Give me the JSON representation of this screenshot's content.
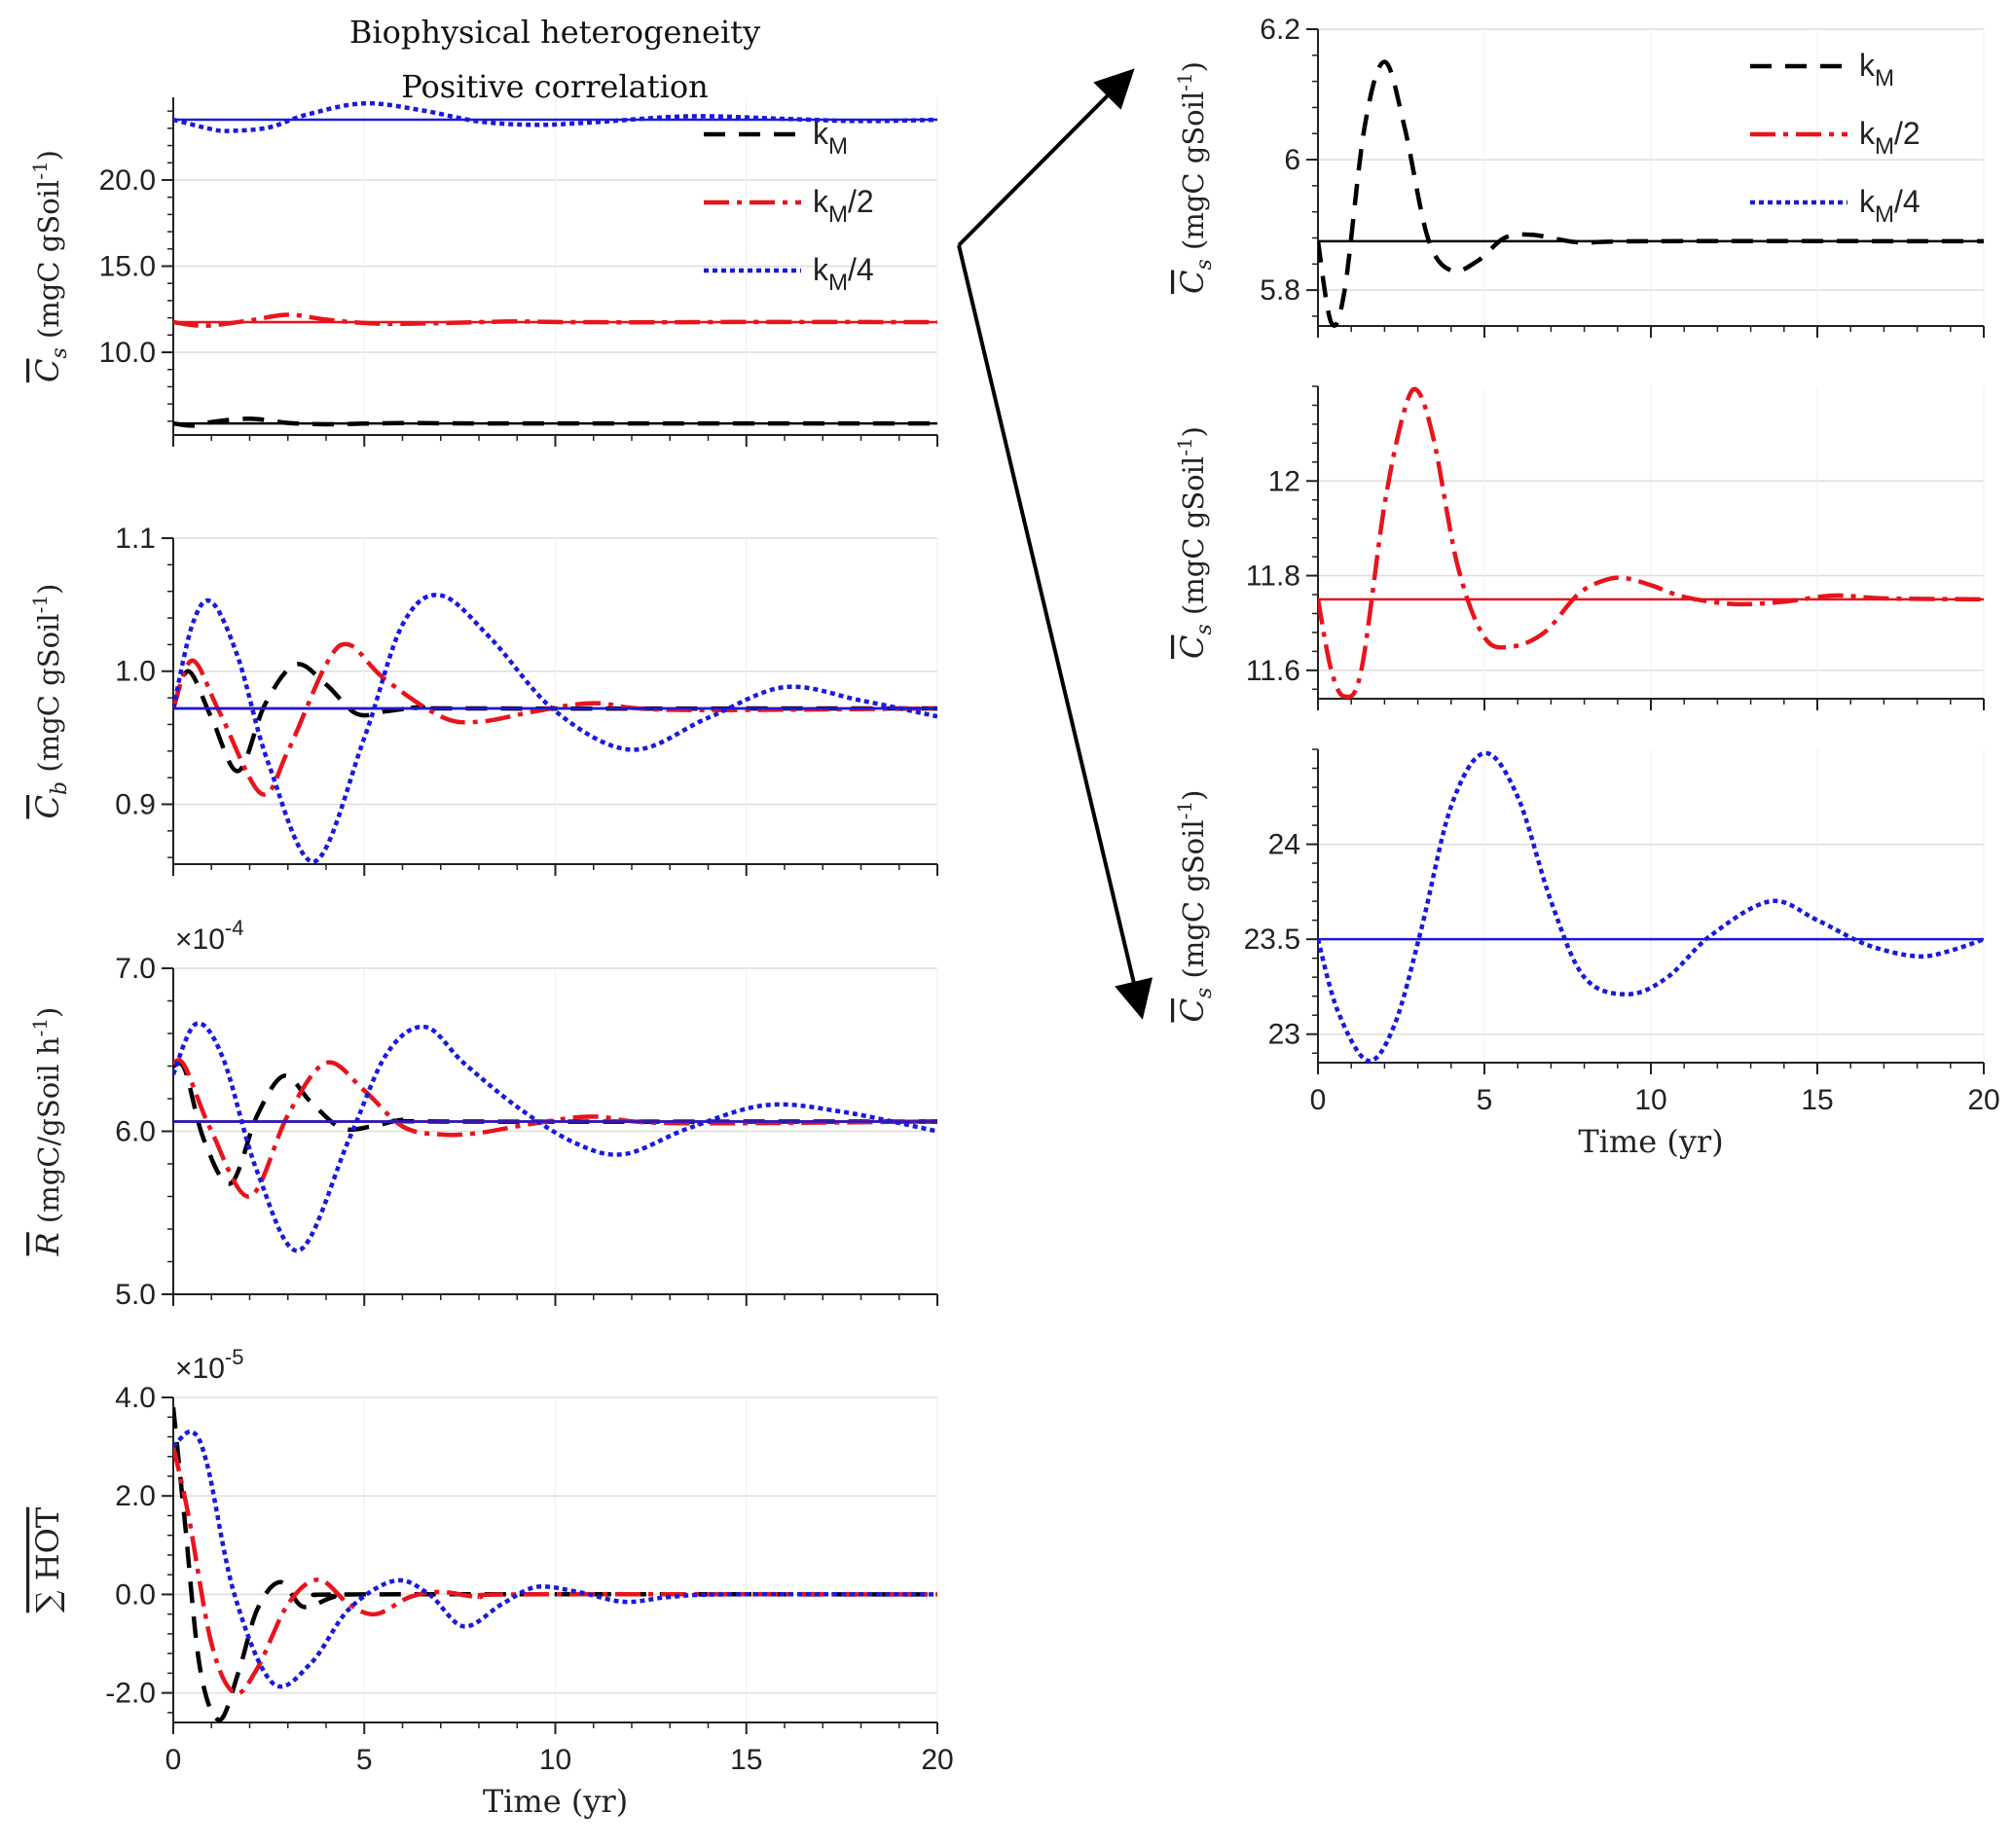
{
  "figure": {
    "title_line1": "Biophysical heterogeneity",
    "title_line2": "Positive correlation",
    "xlabel": "Time (yr)"
  },
  "series_styles": [
    {
      "name": "kM",
      "label_base": "k",
      "label_sub": "M",
      "label_tail": "",
      "color": "#000000",
      "dash": "22,14"
    },
    {
      "name": "kM/2",
      "label_base": "k",
      "label_sub": "M",
      "label_tail": "/2",
      "color": "#e8141c",
      "dash": "26,8,5,8"
    },
    {
      "name": "kM/4",
      "label_base": "k",
      "label_sub": "M",
      "label_tail": "/4",
      "color": "#1a1adb",
      "dash": "5,4"
    }
  ],
  "chart_data": [
    {
      "id": "left-cs",
      "type": "line",
      "ylabel_main": "C",
      "ylabel_sub": "s",
      "ylabel_units": "(mgC  gSoil",
      "ylabel_sup": "-1",
      "ylabel_close": ")",
      "xlim": [
        0,
        20
      ],
      "ylim": [
        5.2,
        24.8
      ],
      "yticks": [
        10,
        15,
        20
      ],
      "ytick_labels": [
        "10.0",
        "15.0",
        "20.0"
      ],
      "xticks": [
        0,
        5,
        10,
        15,
        20
      ],
      "xtick_labels": [
        "",
        "",
        "",
        "",
        ""
      ],
      "grid": true,
      "legend": "top-right",
      "series": [
        {
          "name": "kM",
          "steady": 5.87,
          "x": [
            0,
            0.5,
            1,
            2,
            3,
            4,
            5,
            6,
            7,
            8,
            10,
            20
          ],
          "y": [
            5.87,
            5.74,
            5.95,
            6.15,
            5.9,
            5.82,
            5.86,
            5.89,
            5.88,
            5.87,
            5.87,
            5.87
          ]
        },
        {
          "name": "kM/2",
          "steady": 11.75,
          "x": [
            0,
            0.5,
            1,
            2,
            3,
            4,
            5,
            6,
            8,
            9,
            10,
            12,
            15,
            20
          ],
          "y": [
            11.75,
            11.58,
            11.56,
            11.85,
            12.18,
            11.9,
            11.7,
            11.65,
            11.75,
            11.79,
            11.76,
            11.74,
            11.76,
            11.75
          ]
        },
        {
          "name": "kM/4",
          "steady": 23.5,
          "x": [
            0,
            1,
            1.5,
            2.5,
            3.5,
            5,
            6.5,
            8,
            9.5,
            11,
            13.5,
            16,
            18,
            20
          ],
          "y": [
            23.5,
            22.95,
            22.85,
            23.05,
            23.8,
            24.45,
            24.05,
            23.4,
            23.2,
            23.35,
            23.7,
            23.55,
            23.42,
            23.5
          ]
        }
      ]
    },
    {
      "id": "left-cb",
      "type": "line",
      "ylabel_main": "C",
      "ylabel_sub": "b",
      "ylabel_units": "(mgC  gSoil",
      "ylabel_sup": "-1",
      "ylabel_close": ")",
      "xlim": [
        0,
        20
      ],
      "ylim": [
        0.855,
        1.1
      ],
      "yticks": [
        0.9,
        1.0,
        1.1
      ],
      "ytick_labels": [
        "0.9",
        "1.0",
        "1.1"
      ],
      "xticks": [
        0,
        5,
        10,
        15,
        20
      ],
      "xtick_labels": [
        "",
        "",
        "",
        "",
        ""
      ],
      "grid": true,
      "series": [
        {
          "name": "kM",
          "steady": 0.972,
          "x": [
            0,
            0.4,
            1.0,
            1.7,
            2.4,
            3.2,
            4.0,
            4.8,
            5.6,
            6.5,
            7.5,
            20
          ],
          "y": [
            0.972,
            1.0,
            0.965,
            0.925,
            0.975,
            1.005,
            0.99,
            0.968,
            0.97,
            0.973,
            0.972,
            0.972
          ]
        },
        {
          "name": "kM/2",
          "steady": 0.972,
          "x": [
            0,
            0.5,
            1.2,
            2.3,
            3.0,
            4.0,
            4.6,
            5.5,
            7.0,
            8.0,
            9.5,
            11.0,
            13.0,
            20
          ],
          "y": [
            0.972,
            1.008,
            0.97,
            0.908,
            0.94,
            1.005,
            1.02,
            0.995,
            0.966,
            0.962,
            0.97,
            0.976,
            0.971,
            0.972
          ]
        },
        {
          "name": "kM/4",
          "steady": 0.972,
          "x": [
            0,
            0.5,
            1.0,
            1.7,
            2.5,
            3.7,
            5.0,
            6.0,
            7.0,
            8.3,
            10.0,
            12.0,
            14.0,
            16.0,
            18.0,
            20
          ],
          "y": [
            0.972,
            1.035,
            1.052,
            1.01,
            0.93,
            0.857,
            0.95,
            1.035,
            1.057,
            1.025,
            0.97,
            0.941,
            0.965,
            0.988,
            0.978,
            0.966
          ]
        }
      ]
    },
    {
      "id": "left-r",
      "type": "line",
      "exp_base": "×10",
      "exp_power": "-4",
      "ylabel_main": "R",
      "ylabel_sub": "",
      "ylabel_units": "(mgC/gSoil h",
      "ylabel_sup": "-1",
      "ylabel_close": ")",
      "xlim": [
        0,
        20
      ],
      "ylim": [
        5.0,
        7.0
      ],
      "yticks": [
        5.0,
        6.0,
        7.0
      ],
      "ytick_labels": [
        "5.0",
        "6.0",
        "7.0"
      ],
      "xticks": [
        0,
        5,
        10,
        15,
        20
      ],
      "xtick_labels": [
        "",
        "",
        "",
        "",
        ""
      ],
      "grid": true,
      "series": [
        {
          "name": "kM",
          "steady": 6.06,
          "x": [
            0,
            0.3,
            0.8,
            1.5,
            2.2,
            2.9,
            3.6,
            4.4,
            5.2,
            6.0,
            7.0,
            20
          ],
          "y": [
            6.4,
            6.38,
            5.95,
            5.68,
            6.1,
            6.34,
            6.18,
            6.02,
            6.03,
            6.07,
            6.06,
            6.06
          ]
        },
        {
          "name": "kM/2",
          "steady": 6.06,
          "x": [
            0,
            0.3,
            1.0,
            2.0,
            3.0,
            4.0,
            5.0,
            6.0,
            7.0,
            8.0,
            9.5,
            11.0,
            13.0,
            20
          ],
          "y": [
            6.42,
            6.4,
            6.0,
            5.6,
            6.1,
            6.42,
            6.25,
            6.03,
            5.98,
            5.99,
            6.05,
            6.09,
            6.05,
            6.06
          ]
        },
        {
          "name": "kM/4",
          "steady": 6.06,
          "x": [
            0,
            0.6,
            1.3,
            2.2,
            3.3,
            4.6,
            5.6,
            6.6,
            7.6,
            9.0,
            10.5,
            11.8,
            13.5,
            15.5,
            17.5,
            20
          ],
          "y": [
            6.35,
            6.66,
            6.45,
            5.75,
            5.27,
            5.95,
            6.48,
            6.64,
            6.42,
            6.15,
            5.93,
            5.86,
            6.02,
            6.16,
            6.12,
            6.0
          ]
        }
      ]
    },
    {
      "id": "left-hot",
      "type": "line",
      "exp_base": "×10",
      "exp_power": "-5",
      "ylabel_main": "∑ HOT",
      "ylabel_sub": "",
      "ylabel_units": "",
      "ylabel_sup": "",
      "ylabel_close": "",
      "xlim": [
        0,
        20
      ],
      "ylim": [
        -2.6,
        4.0
      ],
      "yticks": [
        -2.0,
        0.0,
        2.0,
        4.0
      ],
      "ytick_labels": [
        "-2.0",
        "0.0",
        "2.0",
        "4.0"
      ],
      "xticks": [
        0,
        5,
        10,
        15,
        20
      ],
      "xtick_labels": [
        "0",
        "5",
        "10",
        "15",
        "20"
      ],
      "grid": true,
      "series": [
        {
          "name": "kM",
          "x": [
            0,
            0.3,
            0.7,
            1.2,
            1.7,
            2.2,
            2.8,
            3.4,
            4.2,
            5.0,
            20
          ],
          "y": [
            3.8,
            1.5,
            -1.5,
            -2.55,
            -1.6,
            -0.3,
            0.25,
            -0.25,
            -0.05,
            0.0,
            0.0
          ]
        },
        {
          "name": "kM/2",
          "x": [
            0,
            0.4,
            1.0,
            1.6,
            2.2,
            3.0,
            3.8,
            4.6,
            5.3,
            6.2,
            7.0,
            8.0,
            9.0,
            20
          ],
          "y": [
            3.0,
            1.6,
            -1.0,
            -2.0,
            -1.5,
            -0.2,
            0.3,
            -0.2,
            -0.4,
            -0.05,
            0.05,
            -0.05,
            0.0,
            0.0
          ]
        },
        {
          "name": "kM/4",
          "x": [
            0,
            0.5,
            0.9,
            1.6,
            2.6,
            3.6,
            4.6,
            5.8,
            6.7,
            7.6,
            8.6,
            9.5,
            10.6,
            11.8,
            13.0,
            14.5,
            20
          ],
          "y": [
            3.0,
            3.3,
            2.6,
            0.0,
            -1.8,
            -1.4,
            -0.3,
            0.28,
            0.0,
            -0.65,
            -0.2,
            0.15,
            0.05,
            -0.15,
            -0.05,
            0.0,
            0.0
          ]
        }
      ]
    },
    {
      "id": "right-cs-km",
      "type": "line",
      "ylabel_main": "C",
      "ylabel_sub": "s",
      "ylabel_units": "(mgC  gSoil",
      "ylabel_sup": "-1",
      "ylabel_close": ")",
      "xlim": [
        0,
        20
      ],
      "ylim": [
        5.745,
        6.2
      ],
      "yticks": [
        5.8,
        6.0,
        6.2
      ],
      "ytick_labels": [
        "5.8",
        "6",
        "6.2"
      ],
      "xticks": [
        0,
        5,
        10,
        15,
        20
      ],
      "xtick_labels": [
        "",
        "",
        "",
        "",
        ""
      ],
      "grid": true,
      "legend": "top-right",
      "series": [
        {
          "name": "kM",
          "steady": 5.875,
          "x": [
            0,
            0.4,
            0.8,
            1.4,
            2.0,
            2.6,
            3.3,
            4.0,
            4.8,
            5.6,
            6.4,
            7.2,
            8.0,
            10.0,
            20
          ],
          "y": [
            5.875,
            5.75,
            5.8,
            6.05,
            6.15,
            6.05,
            5.88,
            5.83,
            5.845,
            5.88,
            5.885,
            5.878,
            5.873,
            5.875,
            5.875
          ]
        }
      ]
    },
    {
      "id": "right-cs-km2",
      "type": "line",
      "ylabel_main": "C",
      "ylabel_sub": "s",
      "ylabel_units": "(mgC  gSoil",
      "ylabel_sup": "-1",
      "ylabel_close": ")",
      "xlim": [
        0,
        20
      ],
      "ylim": [
        11.54,
        12.2
      ],
      "yticks": [
        11.6,
        11.8,
        12.0
      ],
      "ytick_labels": [
        "11.6",
        "11.8",
        "12"
      ],
      "xticks": [
        0,
        5,
        10,
        15,
        20
      ],
      "xtick_labels": [
        "",
        "",
        "",
        "",
        ""
      ],
      "grid": true,
      "series": [
        {
          "name": "kM/2",
          "steady": 11.75,
          "x": [
            0,
            0.4,
            0.8,
            1.3,
            2.0,
            2.6,
            3.0,
            3.5,
            4.2,
            5.0,
            5.8,
            6.8,
            7.8,
            8.6,
            9.2,
            10.0,
            11.0,
            12.5,
            14.0,
            15.5,
            17.0,
            20
          ],
          "y": [
            11.75,
            11.6,
            11.545,
            11.6,
            11.95,
            12.15,
            12.19,
            12.08,
            11.82,
            11.67,
            11.65,
            11.68,
            11.76,
            11.79,
            11.795,
            11.78,
            11.755,
            11.74,
            11.745,
            11.758,
            11.752,
            11.75
          ]
        }
      ]
    },
    {
      "id": "right-cs-km4",
      "type": "line",
      "ylabel_main": "C",
      "ylabel_sub": "s",
      "ylabel_units": "(mgC  gSoil",
      "ylabel_sup": "-1",
      "ylabel_close": ")",
      "xlim": [
        0,
        20
      ],
      "ylim": [
        22.85,
        24.5
      ],
      "yticks": [
        23.0,
        23.5,
        24.0
      ],
      "ytick_labels": [
        "23",
        "23.5",
        "24"
      ],
      "xticks": [
        0,
        5,
        10,
        15,
        20
      ],
      "xtick_labels": [
        "0",
        "5",
        "10",
        "15",
        "20"
      ],
      "grid": true,
      "series": [
        {
          "name": "kM/4",
          "steady": 23.5,
          "x": [
            0,
            0.6,
            1.5,
            2.3,
            3.1,
            4.0,
            5.0,
            6.0,
            7.0,
            8.0,
            9.3,
            10.5,
            11.8,
            13.6,
            15.0,
            16.5,
            18.0,
            19.0,
            20
          ],
          "y": [
            23.5,
            23.12,
            22.86,
            23.05,
            23.55,
            24.2,
            24.48,
            24.25,
            23.7,
            23.3,
            23.21,
            23.3,
            23.52,
            23.7,
            23.6,
            23.47,
            23.41,
            23.44,
            23.5
          ]
        }
      ]
    }
  ]
}
